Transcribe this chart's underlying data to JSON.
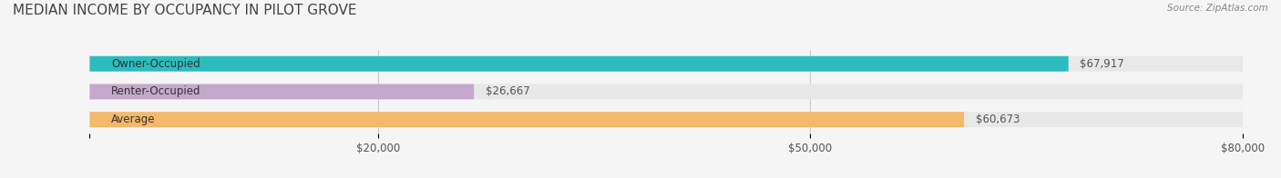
{
  "title": "MEDIAN INCOME BY OCCUPANCY IN PILOT GROVE",
  "source": "Source: ZipAtlas.com",
  "categories": [
    "Owner-Occupied",
    "Renter-Occupied",
    "Average"
  ],
  "values": [
    67917,
    26667,
    60673
  ],
  "bar_colors": [
    "#2bbcbe",
    "#c4a8cc",
    "#f5b96a"
  ],
  "bar_labels": [
    "$67,917",
    "$26,667",
    "$60,673"
  ],
  "xlim": [
    0,
    80000
  ],
  "xticks": [
    0,
    20000,
    50000,
    80000
  ],
  "xtick_labels": [
    "",
    "$20,000",
    "$50,000",
    "$80,000"
  ],
  "background_color": "#f5f5f5",
  "bar_bg_color": "#e8e8e8",
  "title_fontsize": 11,
  "label_fontsize": 8.5,
  "tick_fontsize": 8.5,
  "bar_height": 0.55,
  "figsize": [
    14.06,
    1.96
  ],
  "dpi": 100
}
